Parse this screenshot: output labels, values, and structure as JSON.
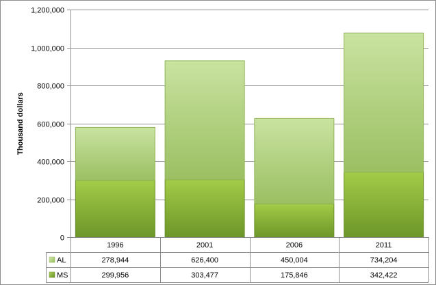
{
  "chart_data": {
    "type": "bar",
    "stacked": true,
    "ylabel": "Thousand dollars",
    "xlabel": "",
    "ylim": [
      0,
      1200000
    ],
    "y_ticks": [
      0,
      200000,
      400000,
      600000,
      800000,
      1000000,
      1200000
    ],
    "y_tick_labels": [
      "0",
      "200,000",
      "400,000",
      "600,000",
      "800,000",
      "1,000,000",
      "1,200,000"
    ],
    "categories": [
      "1996",
      "2001",
      "2006",
      "2011"
    ],
    "grid": true,
    "legend": "data-table",
    "series": [
      {
        "name": "MS",
        "values": [
          299956,
          303477,
          175846,
          342422
        ],
        "labels": [
          "299,956",
          "303,477",
          "175,846",
          "342,422"
        ],
        "color": "#8db33c"
      },
      {
        "name": "AL",
        "values": [
          278944,
          626400,
          450004,
          734204
        ],
        "labels": [
          "278,944",
          "626,400",
          "450,004",
          "734,204"
        ],
        "color": "#b3d47c"
      }
    ]
  }
}
